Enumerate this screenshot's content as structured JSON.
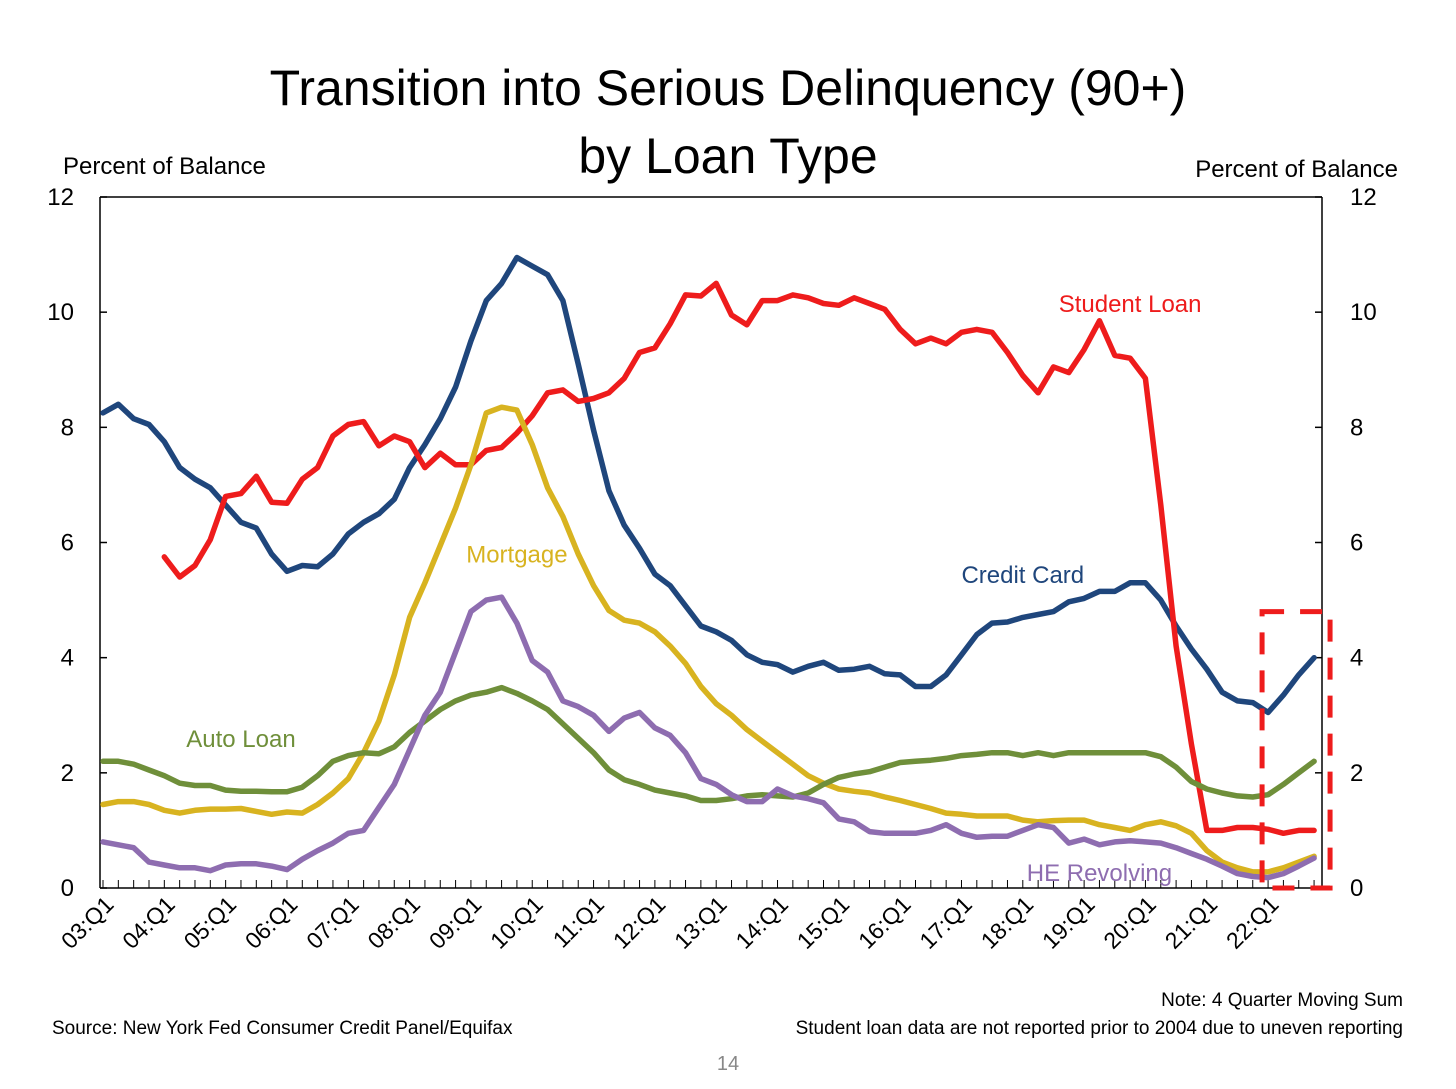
{
  "page": {
    "title_line1": "Transition into Serious Delinquency (90+)",
    "title_line2": "by Loan Type",
    "source": "Source: New York Fed Consumer Credit Panel/Equifax",
    "note_line1": "Note: 4 Quarter Moving Sum",
    "note_line2": "Student loan data are not reported prior to 2004 due to uneven reporting",
    "page_number": "14"
  },
  "chart_data": {
    "type": "line",
    "title": "Transition into Serious Delinquency (90+) by Loan Type",
    "ylabel_left": "Percent of Balance",
    "ylabel_right": "Percent of Balance",
    "ylim": [
      0,
      12
    ],
    "yticks": [
      "0",
      "2",
      "4",
      "6",
      "8",
      "10",
      "12"
    ],
    "x_start": "03:Q1",
    "x_tick_labels": [
      "03:Q1",
      "04:Q1",
      "05:Q1",
      "06:Q1",
      "07:Q1",
      "08:Q1",
      "09:Q1",
      "10:Q1",
      "11:Q1",
      "12:Q1",
      "13:Q1",
      "14:Q1",
      "15:Q1",
      "16:Q1",
      "17:Q1",
      "18:Q1",
      "19:Q1",
      "20:Q1",
      "21:Q1",
      "22:Q1"
    ],
    "grid": false,
    "legend": "inline labels",
    "highlight_box": {
      "from": "22:Q1",
      "to": "22:Q4",
      "ymin": 0,
      "ymax": 4.8,
      "color": "#ee1c1c",
      "style": "dashed"
    },
    "series": [
      {
        "name": "Credit Card",
        "color": "#1f467c",
        "label_at": [
          "18:Q1",
          5.3
        ],
        "values": [
          8.25,
          8.4,
          8.15,
          8.05,
          7.75,
          7.3,
          7.1,
          6.95,
          6.65,
          6.35,
          6.25,
          5.8,
          5.5,
          5.6,
          5.58,
          5.8,
          6.15,
          6.35,
          6.5,
          6.75,
          7.3,
          7.7,
          8.15,
          8.7,
          9.5,
          10.2,
          10.5,
          10.95,
          10.8,
          10.65,
          10.2,
          9.1,
          7.95,
          6.9,
          6.3,
          5.9,
          5.45,
          5.25,
          4.9,
          4.55,
          4.45,
          4.3,
          4.05,
          3.92,
          3.88,
          3.75,
          3.85,
          3.92,
          3.78,
          3.8,
          3.85,
          3.72,
          3.7,
          3.5,
          3.5,
          3.7,
          4.05,
          4.4,
          4.6,
          4.62,
          4.7,
          4.75,
          4.8,
          4.97,
          5.03,
          5.15,
          5.15,
          5.3,
          5.3,
          5.0,
          4.55,
          4.15,
          3.8,
          3.4,
          3.25,
          3.22,
          3.05,
          3.35,
          3.7,
          4.0
        ]
      },
      {
        "name": "Student Loan",
        "color": "#ee1c1c",
        "label_at": [
          "19:Q4",
          10.0
        ],
        "values": [
          null,
          null,
          null,
          null,
          5.75,
          5.4,
          5.6,
          6.05,
          6.8,
          6.85,
          7.15,
          6.7,
          6.68,
          7.1,
          7.3,
          7.85,
          8.05,
          8.1,
          7.68,
          7.85,
          7.75,
          7.3,
          7.55,
          7.35,
          7.35,
          7.6,
          7.65,
          7.9,
          8.2,
          8.6,
          8.65,
          8.45,
          8.5,
          8.6,
          8.85,
          9.3,
          9.38,
          9.8,
          10.3,
          10.28,
          10.5,
          9.95,
          9.78,
          10.2,
          10.2,
          10.3,
          10.25,
          10.15,
          10.12,
          10.25,
          10.15,
          10.05,
          9.7,
          9.45,
          9.55,
          9.45,
          9.65,
          9.7,
          9.65,
          9.3,
          8.9,
          8.6,
          9.05,
          8.95,
          9.35,
          9.85,
          9.25,
          9.2,
          8.85,
          6.65,
          4.2,
          2.5,
          1.0,
          1.0,
          1.05,
          1.05,
          1.02,
          0.95,
          1.0,
          1.0
        ]
      },
      {
        "name": "Mortgage",
        "color": "#d8b320",
        "label_at": [
          "09:Q4",
          5.65
        ],
        "values": [
          1.45,
          1.5,
          1.5,
          1.45,
          1.35,
          1.3,
          1.35,
          1.37,
          1.37,
          1.38,
          1.33,
          1.28,
          1.32,
          1.3,
          1.45,
          1.65,
          1.9,
          2.35,
          2.9,
          3.7,
          4.7,
          5.3,
          5.95,
          6.6,
          7.35,
          8.25,
          8.35,
          8.3,
          7.7,
          6.95,
          6.45,
          5.8,
          5.25,
          4.82,
          4.65,
          4.6,
          4.45,
          4.2,
          3.9,
          3.5,
          3.2,
          3.0,
          2.75,
          2.55,
          2.35,
          2.15,
          1.95,
          1.82,
          1.72,
          1.68,
          1.65,
          1.58,
          1.52,
          1.45,
          1.38,
          1.3,
          1.28,
          1.25,
          1.25,
          1.25,
          1.18,
          1.15,
          1.17,
          1.18,
          1.18,
          1.1,
          1.05,
          1.0,
          1.1,
          1.15,
          1.08,
          0.95,
          0.65,
          0.45,
          0.35,
          0.28,
          0.28,
          0.35,
          0.45,
          0.55
        ]
      },
      {
        "name": "Auto Loan",
        "color": "#6f8f3a",
        "label_at": [
          "05:Q2",
          2.45
        ],
        "values": [
          2.2,
          2.2,
          2.15,
          2.05,
          1.95,
          1.82,
          1.78,
          1.78,
          1.7,
          1.68,
          1.68,
          1.67,
          1.67,
          1.75,
          1.95,
          2.2,
          2.3,
          2.35,
          2.33,
          2.45,
          2.7,
          2.9,
          3.1,
          3.25,
          3.35,
          3.4,
          3.48,
          3.38,
          3.25,
          3.1,
          2.85,
          2.6,
          2.35,
          2.05,
          1.88,
          1.8,
          1.7,
          1.65,
          1.6,
          1.52,
          1.52,
          1.55,
          1.6,
          1.62,
          1.6,
          1.58,
          1.65,
          1.8,
          1.92,
          1.98,
          2.02,
          2.1,
          2.18,
          2.2,
          2.22,
          2.25,
          2.3,
          2.32,
          2.35,
          2.35,
          2.3,
          2.35,
          2.3,
          2.35,
          2.35,
          2.35,
          2.35,
          2.35,
          2.35,
          2.28,
          2.1,
          1.85,
          1.72,
          1.65,
          1.6,
          1.58,
          1.62,
          1.8,
          2.0,
          2.2
        ]
      },
      {
        "name": "HE Revolving",
        "color": "#8e6db0",
        "label_at": [
          "19:Q2",
          0.12
        ],
        "values": [
          0.8,
          0.75,
          0.7,
          0.45,
          0.4,
          0.35,
          0.35,
          0.3,
          0.4,
          0.42,
          0.42,
          0.38,
          0.32,
          0.5,
          0.65,
          0.78,
          0.95,
          1.0,
          1.4,
          1.8,
          2.4,
          3.0,
          3.4,
          4.1,
          4.8,
          5.0,
          5.05,
          4.6,
          3.95,
          3.75,
          3.25,
          3.15,
          3.0,
          2.72,
          2.95,
          3.05,
          2.78,
          2.65,
          2.35,
          1.9,
          1.8,
          1.62,
          1.5,
          1.5,
          1.72,
          1.6,
          1.55,
          1.48,
          1.2,
          1.15,
          0.98,
          0.95,
          0.95,
          0.95,
          1.0,
          1.1,
          0.95,
          0.88,
          0.9,
          0.9,
          1.0,
          1.1,
          1.05,
          0.78,
          0.85,
          0.75,
          0.8,
          0.82,
          0.8,
          0.78,
          0.7,
          0.6,
          0.5,
          0.38,
          0.25,
          0.2,
          0.18,
          0.25,
          0.38,
          0.52
        ]
      }
    ]
  }
}
